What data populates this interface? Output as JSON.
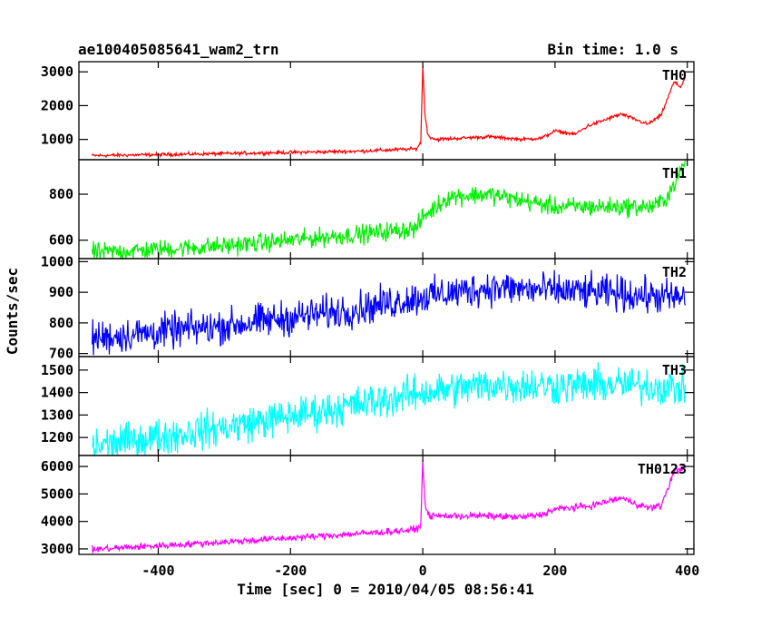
{
  "header": {
    "title": "ae100405085641_wam2_trn",
    "bin_time": "Bin time: 1.0 s"
  },
  "chart_data": {
    "type": "line",
    "xlabel": "Time [sec] 0 = 2010/04/05 08:56:41",
    "ylabel": "Counts/sec",
    "xlim": [
      -520,
      410
    ],
    "x_ticks": [
      -400,
      -200,
      0,
      200,
      400
    ],
    "x_range": [
      -500,
      397
    ],
    "panels": [
      {
        "name": "TH0",
        "color": "#ff0000",
        "ylim": [
          400,
          3300
        ],
        "y_ticks": [
          1000,
          2000,
          3000
        ],
        "profile": [
          [
            -500,
            520
          ],
          [
            -300,
            580
          ],
          [
            -100,
            650
          ],
          [
            -10,
            720
          ],
          [
            -3,
            900
          ],
          [
            0,
            3200
          ],
          [
            3,
            1800
          ],
          [
            8,
            1100
          ],
          [
            20,
            1000
          ],
          [
            100,
            1080
          ],
          [
            150,
            1000
          ],
          [
            180,
            1040
          ],
          [
            200,
            1250
          ],
          [
            230,
            1150
          ],
          [
            250,
            1400
          ],
          [
            300,
            1750
          ],
          [
            340,
            1450
          ],
          [
            360,
            1700
          ],
          [
            380,
            2700
          ],
          [
            390,
            2550
          ],
          [
            397,
            2850
          ]
        ],
        "noise": 25
      },
      {
        "name": "TH1",
        "color": "#00ee00",
        "ylim": [
          520,
          950
        ],
        "y_ticks": [
          600,
          800
        ],
        "profile": [
          [
            -500,
            545
          ],
          [
            -300,
            575
          ],
          [
            -100,
            625
          ],
          [
            -10,
            650
          ],
          [
            0,
            700
          ],
          [
            40,
            790
          ],
          [
            100,
            800
          ],
          [
            200,
            745
          ],
          [
            300,
            745
          ],
          [
            350,
            745
          ],
          [
            370,
            790
          ],
          [
            397,
            940
          ]
        ],
        "noise": 20
      },
      {
        "name": "TH2",
        "color": "#0000ff",
        "ylim": [
          690,
          1010
        ],
        "y_ticks": [
          700,
          800,
          900,
          1000
        ],
        "profile": [
          [
            -500,
            750
          ],
          [
            -300,
            790
          ],
          [
            -100,
            845
          ],
          [
            0,
            885
          ],
          [
            100,
            915
          ],
          [
            200,
            905
          ],
          [
            300,
            895
          ],
          [
            397,
            880
          ]
        ],
        "noise": 28
      },
      {
        "name": "TH3",
        "color": "#00ffff",
        "ylim": [
          1120,
          1560
        ],
        "y_ticks": [
          1200,
          1300,
          1400,
          1500
        ],
        "profile": [
          [
            -500,
            1160
          ],
          [
            -300,
            1245
          ],
          [
            -100,
            1345
          ],
          [
            0,
            1400
          ],
          [
            100,
            1435
          ],
          [
            200,
            1430
          ],
          [
            300,
            1435
          ],
          [
            397,
            1420
          ]
        ],
        "noise": 40
      },
      {
        "name": "TH0123",
        "color": "#ff00ff",
        "ylim": [
          2800,
          6400
        ],
        "y_ticks": [
          3000,
          4000,
          5000,
          6000
        ],
        "profile": [
          [
            -500,
            2980
          ],
          [
            -300,
            3250
          ],
          [
            -100,
            3550
          ],
          [
            -10,
            3700
          ],
          [
            -3,
            3900
          ],
          [
            0,
            6200
          ],
          [
            3,
            4800
          ],
          [
            8,
            4200
          ],
          [
            100,
            4200
          ],
          [
            150,
            4150
          ],
          [
            180,
            4250
          ],
          [
            200,
            4450
          ],
          [
            250,
            4550
          ],
          [
            300,
            4850
          ],
          [
            340,
            4500
          ],
          [
            360,
            4550
          ],
          [
            380,
            5800
          ],
          [
            397,
            6000
          ]
        ],
        "noise": 60
      }
    ]
  }
}
